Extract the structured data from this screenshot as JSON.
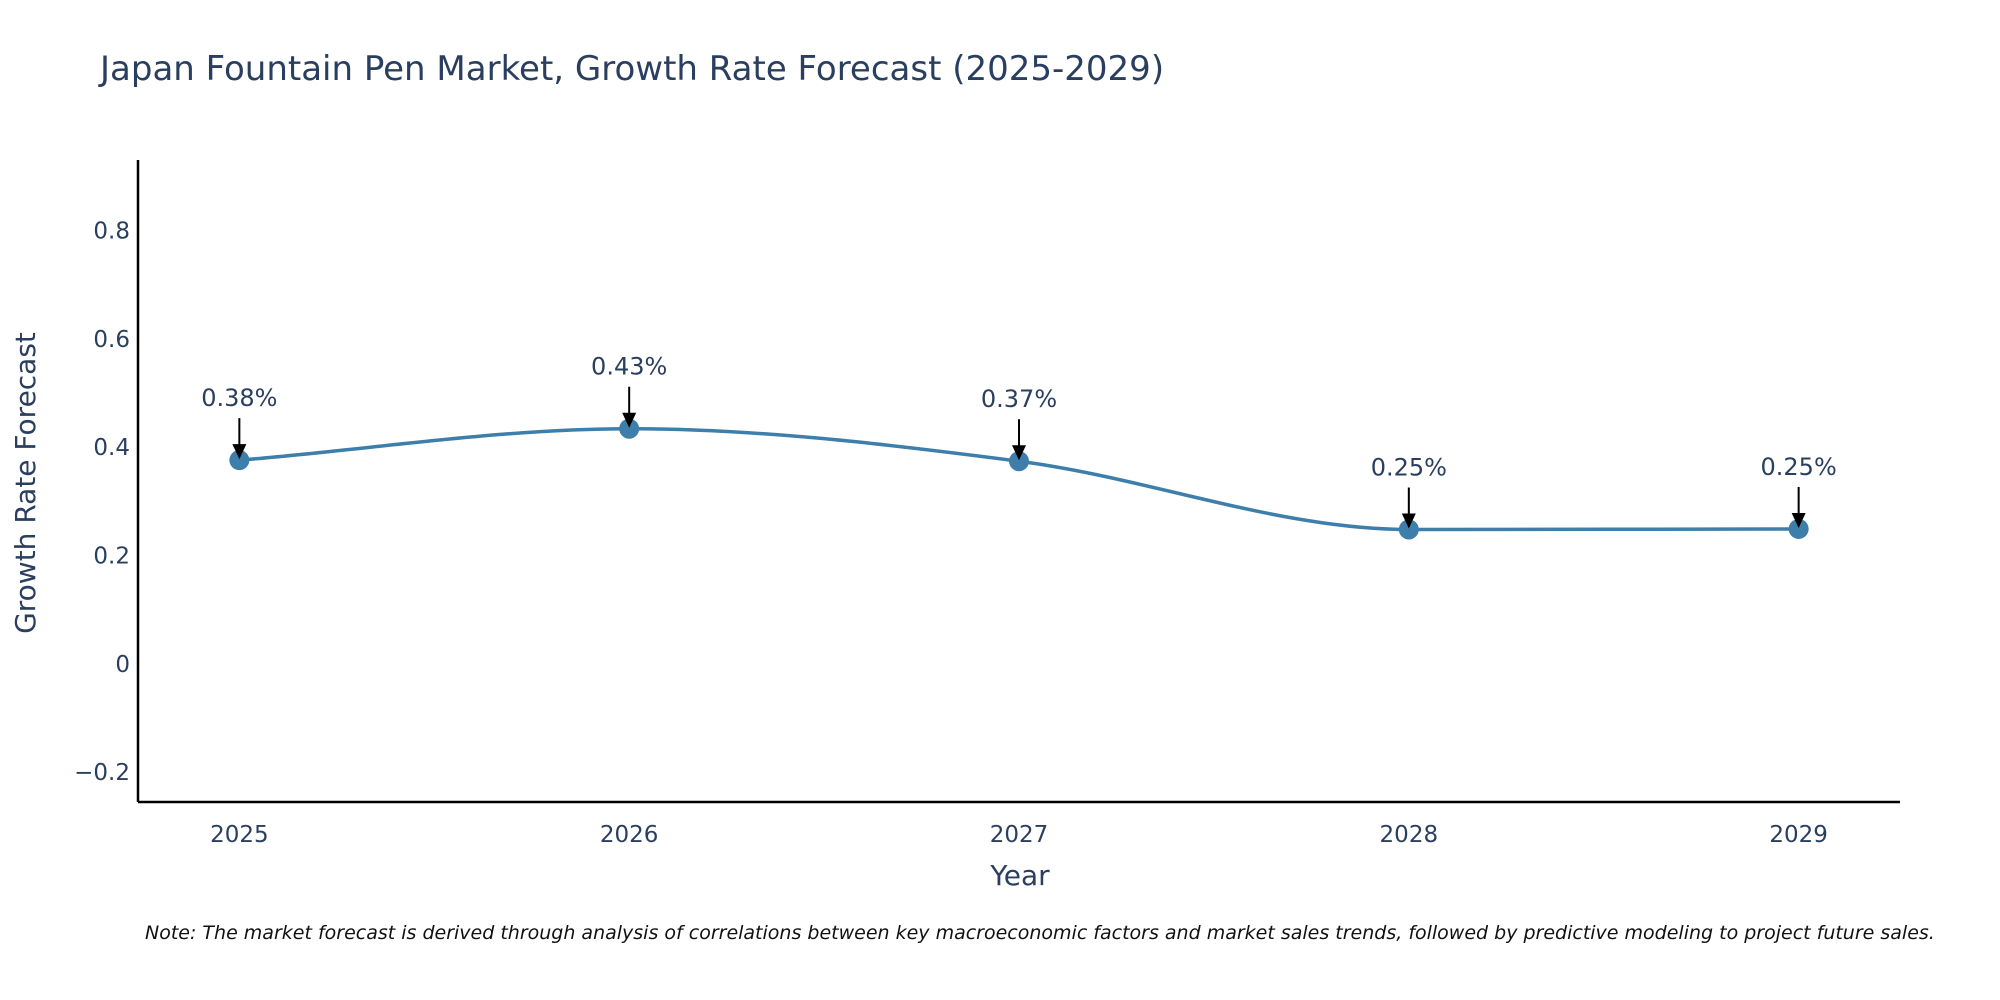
{
  "chart_data": {
    "type": "line",
    "title": "Japan Fountain Pen Market, Growth Rate Forecast (2025-2029)",
    "xlabel": "Year",
    "ylabel": "Growth Rate Forecast",
    "x": [
      "2025",
      "2026",
      "2027",
      "2028",
      "2029"
    ],
    "series": [
      {
        "name": "Growth Rate Forecast",
        "values": [
          0.376,
          0.434,
          0.374,
          0.248,
          0.249
        ],
        "labels": [
          "0.38%",
          "0.43%",
          "0.37%",
          "0.25%",
          "0.25%"
        ],
        "color": "#3d7eab"
      }
    ],
    "yticks": [
      -0.2,
      0,
      0.2,
      0.4,
      0.6,
      0.8
    ],
    "ytick_labels": [
      "−0.2",
      "0",
      "0.2",
      "0.4",
      "0.6",
      "0.8"
    ],
    "ylim": [
      -0.255,
      0.93
    ],
    "xlim": [
      2024.74,
      2029.26
    ],
    "line_shape": "spline",
    "grid": false,
    "legend": "none",
    "note": "Note: The market forecast is derived through analysis of correlations between key macroeconomic factors and market sales trends, followed by predictive modeling to project future sales."
  }
}
